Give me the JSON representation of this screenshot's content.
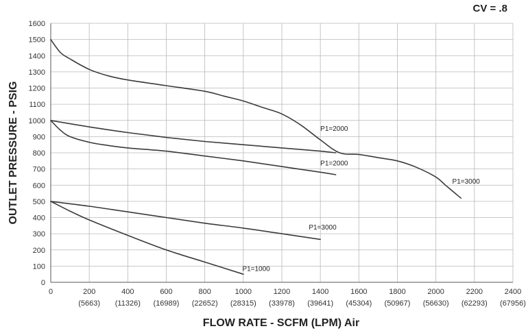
{
  "chart_data": {
    "type": "line",
    "title": "",
    "corner_label": "CV = .8",
    "xlabel": "FLOW RATE - SCFM (LPM) Air",
    "ylabel": "OUTLET PRESSURE - PSIG",
    "xlim": [
      0,
      2400
    ],
    "ylim": [
      0,
      1600
    ],
    "grid": true,
    "x_ticks": [
      0,
      200,
      400,
      600,
      800,
      1000,
      1200,
      1400,
      1600,
      1800,
      2000,
      2200,
      2400
    ],
    "x_ticks_secondary": [
      "",
      "(5663)",
      "(11326)",
      "(16989)",
      "(22652)",
      "(28315)",
      "(33978)",
      "(39641)",
      "(45304)",
      "(50967)",
      "(56630)",
      "(62293)",
      "(67956)"
    ],
    "y_ticks": [
      0,
      100,
      200,
      300,
      400,
      500,
      600,
      700,
      800,
      900,
      1000,
      1100,
      1200,
      1300,
      1400,
      1500,
      1600
    ],
    "series": [
      {
        "name": "P1=3000",
        "x": [
          0,
          50,
          100,
          200,
          300,
          400,
          600,
          800,
          900,
          1000,
          1100,
          1200,
          1300,
          1400,
          1500,
          1600,
          1700,
          1800,
          1900,
          2000,
          2050,
          2100,
          2130
        ],
        "y": [
          1500,
          1420,
          1380,
          1315,
          1275,
          1250,
          1215,
          1180,
          1150,
          1120,
          1080,
          1040,
          970,
          880,
          800,
          790,
          770,
          750,
          710,
          650,
          600,
          550,
          520
        ]
      },
      {
        "name": "P1=2000",
        "x": [
          0,
          200,
          400,
          600,
          800,
          1000,
          1200,
          1400,
          1480
        ],
        "y": [
          1000,
          960,
          925,
          895,
          870,
          850,
          830,
          810,
          800
        ]
      },
      {
        "name": "P1=2000",
        "x": [
          0,
          50,
          100,
          200,
          300,
          400,
          600,
          800,
          1000,
          1200,
          1400,
          1480
        ],
        "y": [
          1000,
          940,
          900,
          865,
          845,
          830,
          810,
          780,
          750,
          715,
          680,
          665
        ]
      },
      {
        "name": "P1=3000",
        "x": [
          0,
          200,
          400,
          600,
          800,
          1000,
          1200,
          1400
        ],
        "y": [
          500,
          470,
          435,
          400,
          365,
          335,
          300,
          265
        ]
      },
      {
        "name": "P1=1000",
        "x": [
          0,
          100,
          200,
          400,
          600,
          800,
          1000
        ],
        "y": [
          500,
          440,
          385,
          290,
          200,
          125,
          50
        ]
      }
    ],
    "annotations": [
      {
        "text": "P1=2000",
        "x": 1400,
        "y": 935
      },
      {
        "text": "P1=2000",
        "x": 1400,
        "y": 722
      },
      {
        "text": "P1=3000",
        "x": 2085,
        "y": 610
      },
      {
        "text": "P1=3000",
        "x": 1340,
        "y": 325
      },
      {
        "text": "P1=1000",
        "x": 995,
        "y": 70
      }
    ]
  }
}
